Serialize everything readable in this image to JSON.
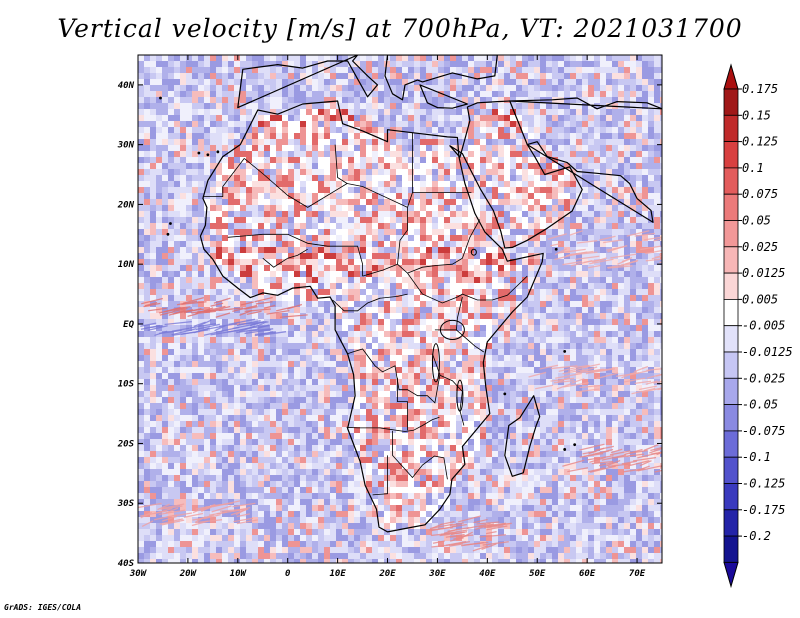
{
  "title": "Vertical velocity [m/s] at 700hPa, VT: 2021031700",
  "credit": "GrADS: IGES/COLA",
  "map": {
    "lon_range": [
      -30,
      75
    ],
    "lat_range": [
      -40,
      45
    ],
    "x_ticks": [
      "30W",
      "20W",
      "10W",
      "0",
      "10E",
      "20E",
      "30E",
      "40E",
      "50E",
      "60E",
      "70E"
    ],
    "x_tick_values": [
      -30,
      -20,
      -10,
      0,
      10,
      20,
      30,
      40,
      50,
      60,
      70
    ],
    "y_ticks": [
      "40S",
      "30S",
      "20S",
      "10S",
      "EQ",
      "10N",
      "20N",
      "30N",
      "40N"
    ],
    "y_tick_values": [
      -40,
      -30,
      -20,
      -10,
      0,
      10,
      20,
      30,
      40
    ]
  },
  "colorbar": {
    "labels": [
      "0.175",
      "0.15",
      "0.125",
      "0.1",
      "0.075",
      "0.05",
      "0.025",
      "0.0125",
      "0.005",
      "-0.005",
      "-0.0125",
      "-0.025",
      "-0.05",
      "-0.075",
      "-0.1",
      "-0.125",
      "-0.175",
      "-0.2"
    ],
    "colors": [
      "#a01818",
      "#c02a2a",
      "#d84040",
      "#e35c5c",
      "#ec7a7a",
      "#f29898",
      "#f7b6b6",
      "#fbd6d6",
      "#ffffff",
      "#e2e2fa",
      "#c6c6f4",
      "#a8a8ec",
      "#8a8ae2",
      "#6c6cd8",
      "#5252cc",
      "#3a3abe",
      "#2424a8",
      "#141490"
    ],
    "top_cap": "#aa1010",
    "bottom_cap": "#1a0a9a"
  }
}
